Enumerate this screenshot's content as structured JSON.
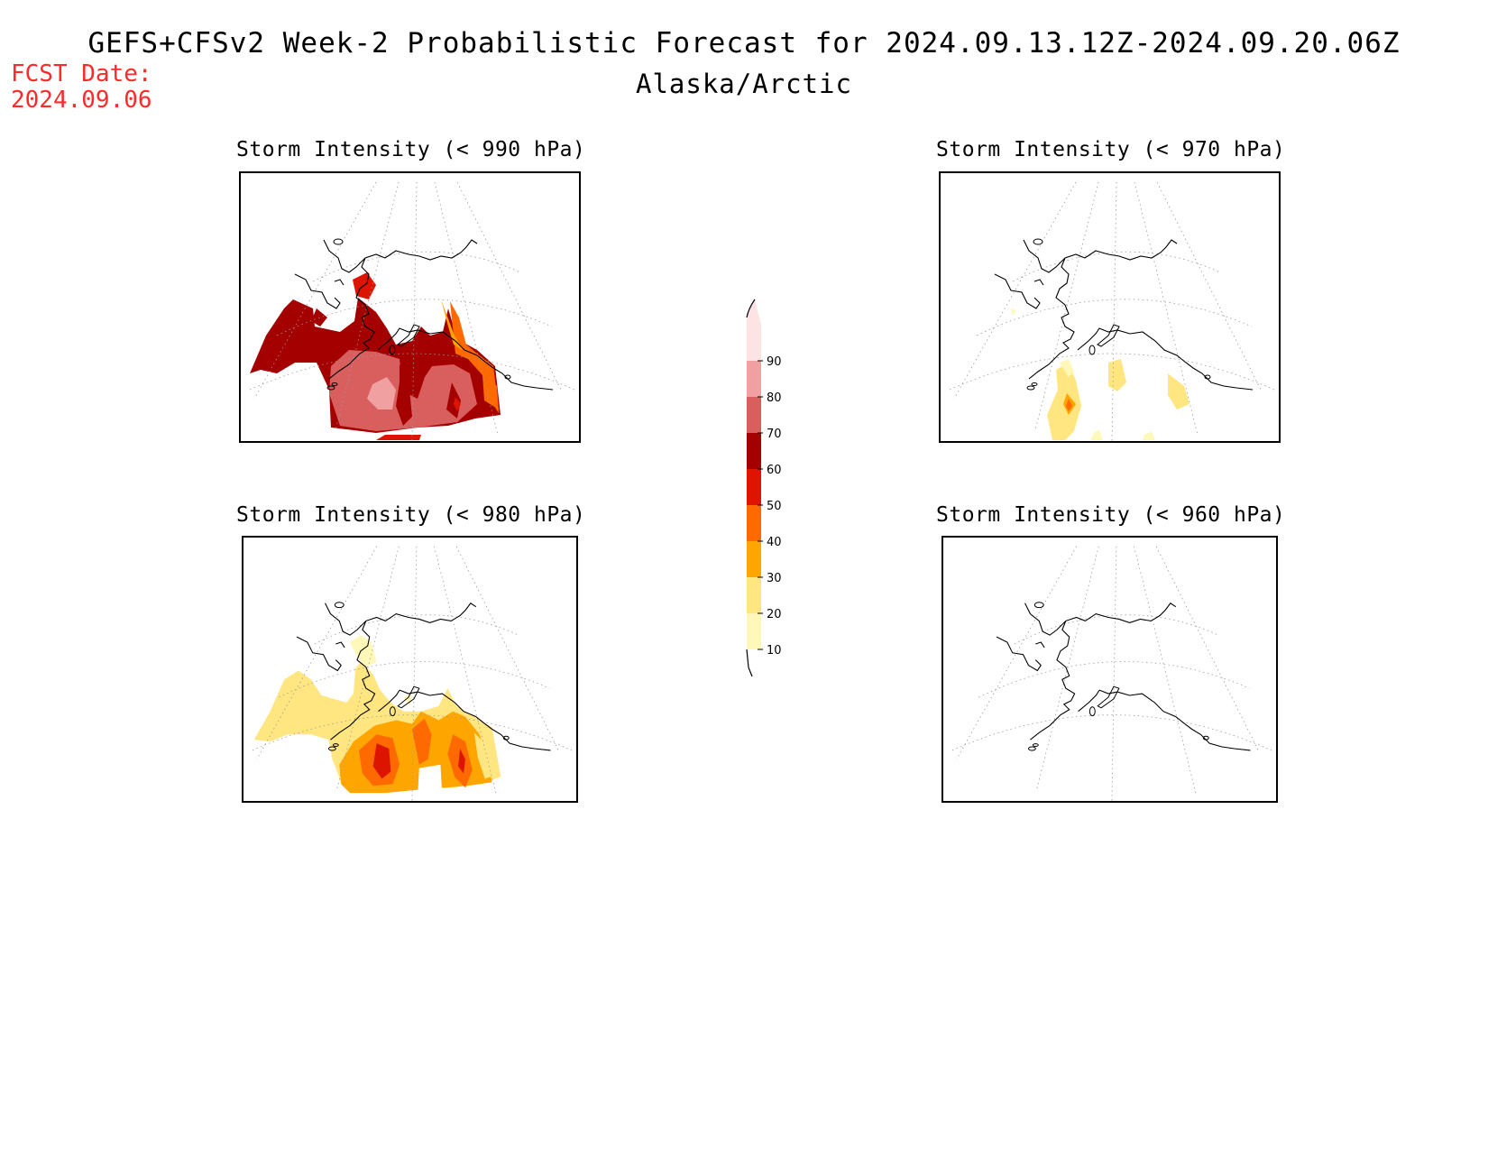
{
  "header": {
    "title": "GEFS+CFSv2 Week-2 Probabilistic Forecast for 2024.09.13.12Z-2024.09.20.06Z",
    "region": "Alaska/Arctic",
    "fcst_label": "FCST Date:",
    "fcst_date": "2024.09.06"
  },
  "panels": [
    {
      "id": "p990",
      "title": "Storm Intensity (< 990 hPa)"
    },
    {
      "id": "p970",
      "title": "Storm Intensity (< 970 hPa)"
    },
    {
      "id": "p980",
      "title": "Storm Intensity (< 980 hPa)"
    },
    {
      "id": "p960",
      "title": "Storm Intensity (< 960 hPa)"
    }
  ],
  "colorbar": {
    "levels": [
      "10",
      "20",
      "30",
      "40",
      "50",
      "60",
      "70",
      "80",
      "90"
    ],
    "colors": [
      "#fff8b8",
      "#ffe680",
      "#ffa500",
      "#ff6a00",
      "#dd1500",
      "#a50000",
      "#d95f5f",
      "#f0a0a0",
      "#fde3e3"
    ]
  }
}
